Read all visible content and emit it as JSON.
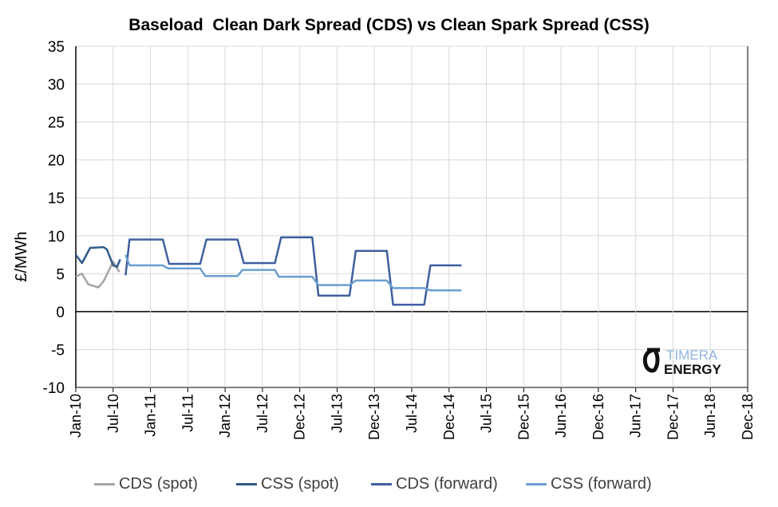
{
  "chart_data": {
    "type": "line",
    "title": "Baseload  Clean Dark Spread (CDS) vs Clean Spark Spread (CSS)",
    "ylabel": "£/MWh",
    "xlabel": "",
    "ylim": [
      -10,
      35
    ],
    "yticks": [
      35,
      30,
      25,
      20,
      15,
      10,
      5,
      0,
      -5,
      -10
    ],
    "xlim": [
      "2010-01-01",
      "2018-12-01"
    ],
    "xtick_labels": [
      "Jan-10",
      "Jul-10",
      "Jan-11",
      "Jul-11",
      "Jan-12",
      "Jul-12",
      "Dec-12",
      "Jul-13",
      "Dec-13",
      "Jul-14",
      "Dec-14",
      "Jul-15",
      "Dec-15",
      "Jun-16",
      "Dec-16",
      "Jun-17",
      "Dec-17",
      "Jun-18",
      "Dec-18"
    ],
    "grid": true,
    "legend_position": "bottom",
    "logo": "TIMERA ENERGY",
    "series": [
      {
        "name": "CDS (spot)",
        "color": "#a5a5a5",
        "points": [
          [
            "2010-01-01",
            4.6
          ],
          [
            "2010-02-01",
            5.0
          ],
          [
            "2010-03-01",
            3.6
          ],
          [
            "2010-04-20",
            3.2
          ],
          [
            "2010-05-15",
            4.0
          ],
          [
            "2010-07-01",
            6.6
          ],
          [
            "2010-08-01",
            5.2
          ]
        ]
      },
      {
        "name": "CSS (spot)",
        "color": "#2f5b88",
        "points": [
          [
            "2010-01-01",
            7.5
          ],
          [
            "2010-02-01",
            6.4
          ],
          [
            "2010-03-10",
            8.4
          ],
          [
            "2010-05-15",
            8.5
          ],
          [
            "2010-06-01",
            8.2
          ],
          [
            "2010-07-01",
            6.1
          ],
          [
            "2010-07-20",
            5.9
          ],
          [
            "2010-08-05",
            6.9
          ]
        ]
      },
      {
        "name": "CDS (forward)",
        "color": "#3f5f9f",
        "points": [
          [
            "2010-09-01",
            4.8
          ],
          [
            "2010-09-20",
            9.5
          ],
          [
            "2011-03-01",
            9.5
          ],
          [
            "2011-04-01",
            6.3
          ],
          [
            "2011-09-01",
            6.3
          ],
          [
            "2011-10-01",
            9.5
          ],
          [
            "2012-03-01",
            9.5
          ],
          [
            "2012-04-01",
            6.4
          ],
          [
            "2012-09-01",
            6.4
          ],
          [
            "2012-10-01",
            9.8
          ],
          [
            "2013-03-01",
            9.8
          ],
          [
            "2013-04-01",
            2.1
          ],
          [
            "2013-09-01",
            2.1
          ],
          [
            "2013-10-01",
            8.0
          ],
          [
            "2014-03-01",
            8.0
          ],
          [
            "2014-04-01",
            0.9
          ],
          [
            "2014-09-01",
            0.9
          ],
          [
            "2014-10-01",
            6.1
          ],
          [
            "2015-03-01",
            6.1
          ]
        ]
      },
      {
        "name": "CSS (forward)",
        "color": "#6a9fd0",
        "points": [
          [
            "2010-09-01",
            7.5
          ],
          [
            "2010-09-20",
            6.1
          ],
          [
            "2011-03-01",
            6.1
          ],
          [
            "2011-03-25",
            5.7
          ],
          [
            "2011-09-01",
            5.7
          ],
          [
            "2011-09-25",
            4.7
          ],
          [
            "2012-03-01",
            4.7
          ],
          [
            "2012-03-25",
            5.5
          ],
          [
            "2012-09-01",
            5.5
          ],
          [
            "2012-09-20",
            4.6
          ],
          [
            "2013-03-01",
            4.6
          ],
          [
            "2013-04-01",
            3.5
          ],
          [
            "2013-09-01",
            3.5
          ],
          [
            "2013-10-01",
            4.1
          ],
          [
            "2014-03-01",
            4.1
          ],
          [
            "2014-04-01",
            3.1
          ],
          [
            "2014-09-01",
            3.1
          ],
          [
            "2014-10-01",
            2.8
          ],
          [
            "2015-03-01",
            2.8
          ]
        ]
      }
    ]
  }
}
